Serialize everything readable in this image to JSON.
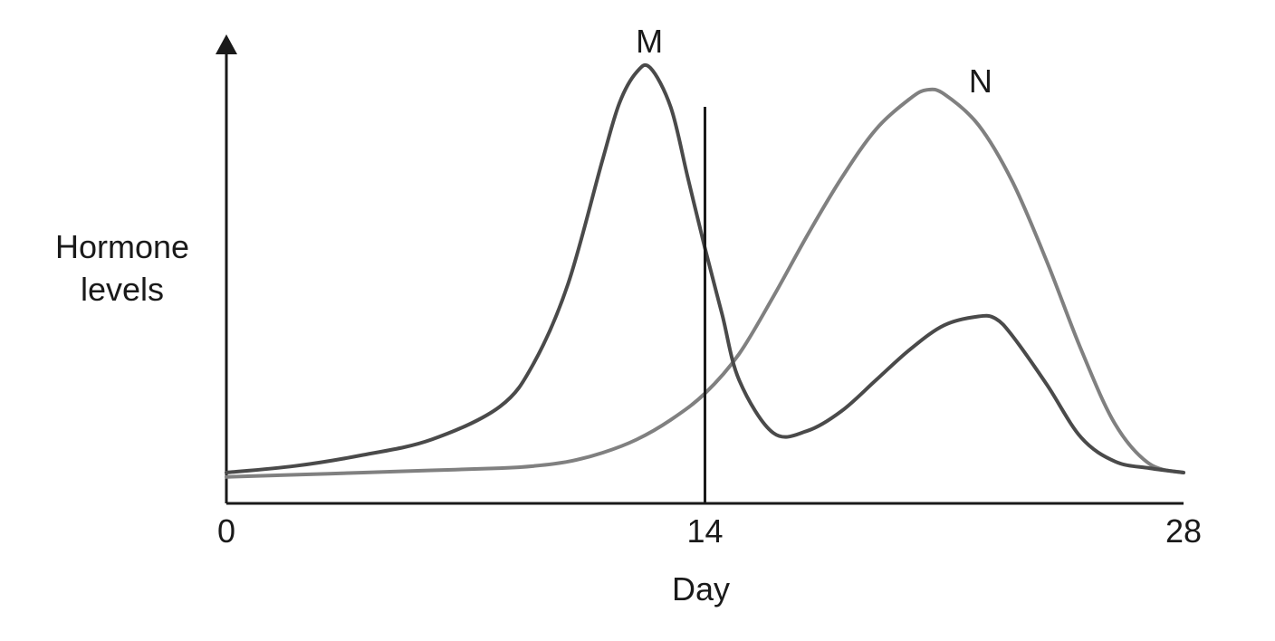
{
  "chart_data": {
    "type": "line",
    "title": "",
    "xlabel": "Day",
    "ylabel": "Hormone levels",
    "xlim": [
      0,
      28
    ],
    "ylim": [
      0,
      100
    ],
    "x_ticks": [
      "0",
      "14",
      "28"
    ],
    "grid": false,
    "marker_line": {
      "x": 14.0
    },
    "series": [
      {
        "name": "M",
        "color": "#4a4a4a",
        "x": [
          0,
          2,
          4,
          6,
          8,
          9,
          10,
          11,
          11.5,
          12,
          12.4,
          13,
          13.5,
          14,
          14.5,
          15,
          16,
          17,
          18,
          19,
          20,
          21,
          22,
          22.5,
          23,
          24,
          25,
          26,
          27,
          28
        ],
        "y": [
          7,
          8.5,
          11,
          14.5,
          22,
          32,
          50,
          78,
          91,
          98,
          99,
          90,
          74,
          58,
          43,
          28,
          16,
          16.5,
          21,
          28,
          35,
          40.5,
          42.5,
          42,
          38,
          27,
          15,
          9.5,
          8,
          7
        ]
      },
      {
        "name": "N",
        "color": "#808080",
        "x": [
          0,
          2,
          4,
          6,
          8,
          9,
          10,
          11,
          12,
          13,
          14,
          15,
          16,
          17,
          18,
          19,
          20,
          20.5,
          21,
          22,
          23,
          24,
          25,
          26,
          27,
          28
        ],
        "y": [
          6,
          6.5,
          7,
          7.5,
          8,
          8.5,
          9.5,
          11.5,
          14.5,
          19,
          25,
          34,
          47,
          61,
          74,
          85,
          92,
          94,
          93,
          86,
          73,
          55,
          35,
          18,
          9,
          7
        ]
      }
    ]
  }
}
